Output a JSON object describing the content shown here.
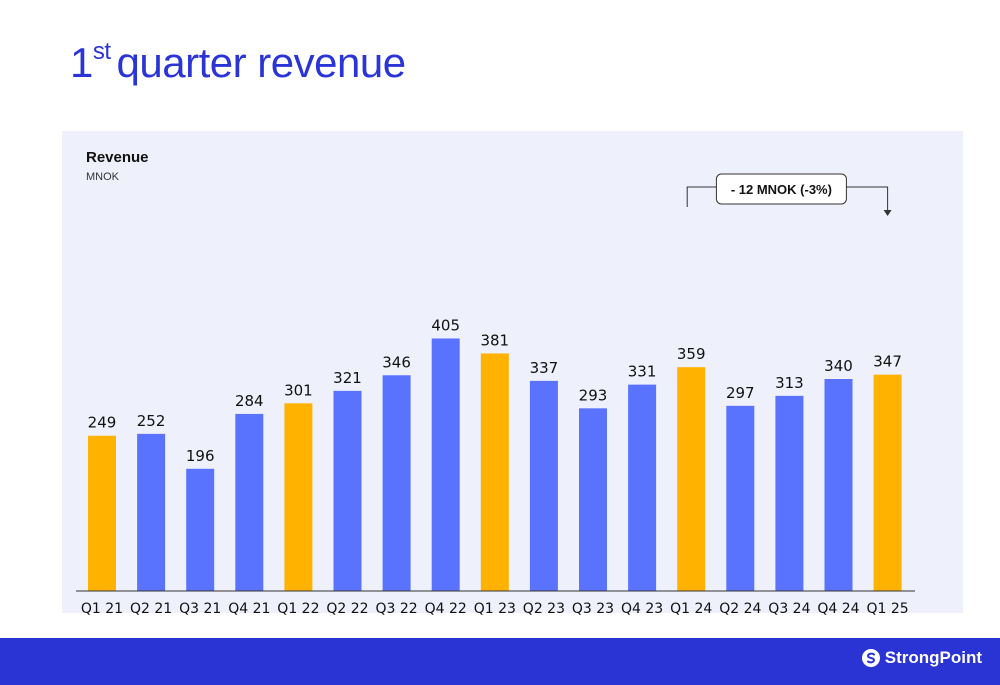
{
  "page": {
    "title_base": "1",
    "title_sup": "st",
    "title_rest": "quarter revenue"
  },
  "chart_data": {
    "type": "bar",
    "title": "Revenue",
    "unit": "MNOK",
    "categories": [
      "Q1 21",
      "Q2 21",
      "Q3 21",
      "Q4 21",
      "Q1 22",
      "Q2 22",
      "Q3 22",
      "Q4 22",
      "Q1 23",
      "Q2 23",
      "Q3 23",
      "Q4 23",
      "Q1 24",
      "Q2 24",
      "Q3 24",
      "Q4 24",
      "Q1 25"
    ],
    "values": [
      249,
      252,
      196,
      284,
      301,
      321,
      346,
      405,
      381,
      337,
      293,
      331,
      359,
      297,
      313,
      340,
      347
    ],
    "highlight": [
      true,
      false,
      false,
      false,
      true,
      false,
      false,
      false,
      true,
      false,
      false,
      false,
      true,
      false,
      false,
      false,
      true
    ],
    "colors": {
      "default": "#5a73ff",
      "highlight": "#ffb300"
    },
    "ylim": [
      0,
      420
    ],
    "annotation": {
      "text": "- 12 MNOK (-3%)",
      "from": "Q1 24",
      "to": "Q1 25"
    }
  },
  "footer": {
    "brand": "StrongPoint",
    "color": "#2a33d4"
  }
}
